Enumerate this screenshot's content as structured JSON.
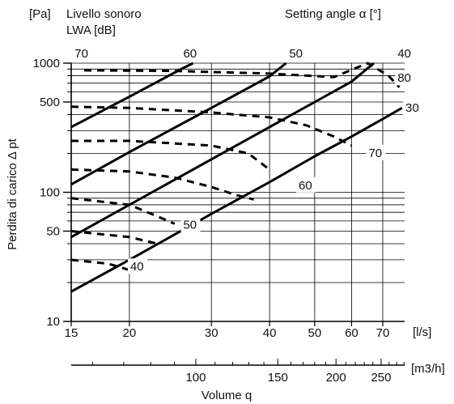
{
  "chart_data": {
    "type": "line",
    "title": "",
    "xlabel": "Volume q",
    "x_unit": "[l/s]",
    "x2_unit": "[m3/h]",
    "ylabel": "Perdita di carico  Δ pt",
    "y_unit": "[Pa]",
    "sound_label": "Livello sonoro",
    "sound_unit": "LWA [dB]",
    "angle_label": "Setting angle α [°]",
    "x_scale": "log",
    "y_scale": "log",
    "xlim": [
      15,
      78
    ],
    "ylim": [
      10,
      1000
    ],
    "x_ticks": [
      {
        "value": 15,
        "label": "15"
      },
      {
        "value": 20,
        "label": "20"
      },
      {
        "value": 30,
        "label": "30"
      },
      {
        "value": 40,
        "label": "40"
      },
      {
        "value": 50,
        "label": "50"
      },
      {
        "value": 60,
        "label": "60"
      },
      {
        "value": 70,
        "label": "70"
      }
    ],
    "x2_ticks": [
      {
        "value": 100,
        "label": "100"
      },
      {
        "value": 150,
        "label": "150"
      },
      {
        "value": 200,
        "label": "200"
      },
      {
        "value": 250,
        "label": "250"
      }
    ],
    "y_ticks": [
      {
        "value": 10,
        "label": "10"
      },
      {
        "value": 50,
        "label": "50"
      },
      {
        "value": 100,
        "label": "100"
      },
      {
        "value": 500,
        "label": "500"
      },
      {
        "value": 1000,
        "label": "1000"
      }
    ],
    "grid": true,
    "angle_series": [
      {
        "name": "70",
        "label_at": {
          "x": 15.2,
          "y": 1000
        },
        "points": [
          [
            15,
            320
          ],
          [
            20,
            550
          ],
          [
            26,
            910
          ],
          [
            27.4,
            1000
          ]
        ]
      },
      {
        "name": "60",
        "label_at": {
          "x": 26,
          "y": 1000
        },
        "points": [
          [
            15,
            115
          ],
          [
            20,
            205
          ],
          [
            30,
            450
          ],
          [
            40,
            790
          ],
          [
            43.4,
            1000
          ]
        ]
      },
      {
        "name": "50",
        "label_at": {
          "x": 43.9,
          "y": 1000
        },
        "points": [
          [
            15,
            45
          ],
          [
            20,
            80
          ],
          [
            30,
            180
          ],
          [
            40,
            320
          ],
          [
            50,
            500
          ],
          [
            60,
            720
          ],
          [
            67,
            1000
          ]
        ]
      },
      {
        "name": "40",
        "label_at": {
          "x": 75,
          "y": 1000
        },
        "points": [
          [
            15,
            17
          ],
          [
            20,
            30
          ],
          [
            30,
            68
          ],
          [
            40,
            120
          ],
          [
            50,
            190
          ],
          [
            60,
            270
          ],
          [
            70,
            370
          ],
          [
            77,
            450
          ]
        ]
      }
    ],
    "sound_series": [
      {
        "name": "80",
        "label_at": {
          "x": 75,
          "y": 780
        },
        "points": [
          [
            16,
            880
          ],
          [
            25,
            870
          ],
          [
            40,
            830
          ],
          [
            55,
            780
          ],
          [
            65,
            1000
          ],
          [
            72,
            800
          ],
          [
            76,
            650
          ]
        ]
      },
      {
        "name": "70",
        "label_at": {
          "x": 65,
          "y": 205
        },
        "points": [
          [
            15,
            460
          ],
          [
            20,
            450
          ],
          [
            30,
            415
          ],
          [
            40,
            380
          ],
          [
            48,
            330
          ],
          [
            55,
            270
          ],
          [
            60,
            230
          ]
        ]
      },
      {
        "name": "60",
        "label_at": {
          "x": 46,
          "y": 115
        },
        "points": [
          [
            15,
            250
          ],
          [
            20,
            250
          ],
          [
            30,
            230
          ],
          [
            36,
            200
          ],
          [
            40,
            150
          ]
        ]
      },
      {
        "name": "50",
        "label_at": {
          "x": 26,
          "y": 57
        },
        "points": [
          [
            15,
            150
          ],
          [
            20,
            145
          ],
          [
            25,
            130
          ],
          [
            30,
            110
          ],
          [
            34,
            95
          ],
          [
            37,
            88
          ]
        ]
      },
      {
        "name": "40",
        "label_at": {
          "x": 20,
          "y": 27
        },
        "points": [
          [
            15,
            90
          ],
          [
            20,
            80
          ],
          [
            23,
            65
          ],
          [
            25,
            57
          ]
        ]
      },
      {
        "name": "",
        "points": [
          [
            15,
            50
          ],
          [
            20,
            45
          ],
          [
            23,
            40
          ]
        ]
      },
      {
        "name": "",
        "points": [
          [
            15,
            30
          ],
          [
            18,
            28
          ],
          [
            20,
            25
          ]
        ]
      }
    ],
    "angle_extra_label": {
      "name": "30",
      "label_at": {
        "x": 78,
        "y": 420
      }
    }
  }
}
